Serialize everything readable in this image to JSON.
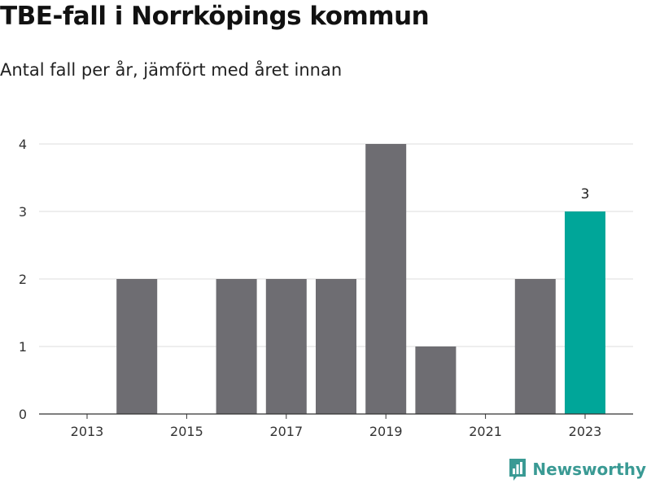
{
  "header": {
    "title": "TBE-fall i Norrköpings kommun",
    "subtitle": "Antal fall per år, jämfört med året innan"
  },
  "brand": {
    "name": "Newsworthy",
    "icon": "bar-chart-logo-icon",
    "color": "#3a9a94"
  },
  "colors": {
    "bar": "#6e6d72",
    "highlight": "#00a699",
    "grid": "#dddddd",
    "axis": "#333333"
  },
  "chart_data": {
    "type": "bar",
    "title": "TBE-fall i Norrköpings kommun",
    "subtitle": "Antal fall per år, jämfört med året innan",
    "xlabel": "",
    "ylabel": "",
    "categories": [
      "2013",
      "2014",
      "2015",
      "2016",
      "2017",
      "2018",
      "2019",
      "2020",
      "2021",
      "2022",
      "2023"
    ],
    "values": [
      0,
      2,
      0,
      2,
      2,
      2,
      4,
      1,
      0,
      2,
      3
    ],
    "x_tick_labels": [
      "2013",
      "2015",
      "2017",
      "2019",
      "2021",
      "2023"
    ],
    "y_ticks": [
      0,
      1,
      2,
      3,
      4
    ],
    "ylim": [
      0,
      4
    ],
    "highlight_category": "2023",
    "data_labels": [
      {
        "category": "2023",
        "text": "3"
      }
    ],
    "grid": true,
    "legend": "none"
  }
}
